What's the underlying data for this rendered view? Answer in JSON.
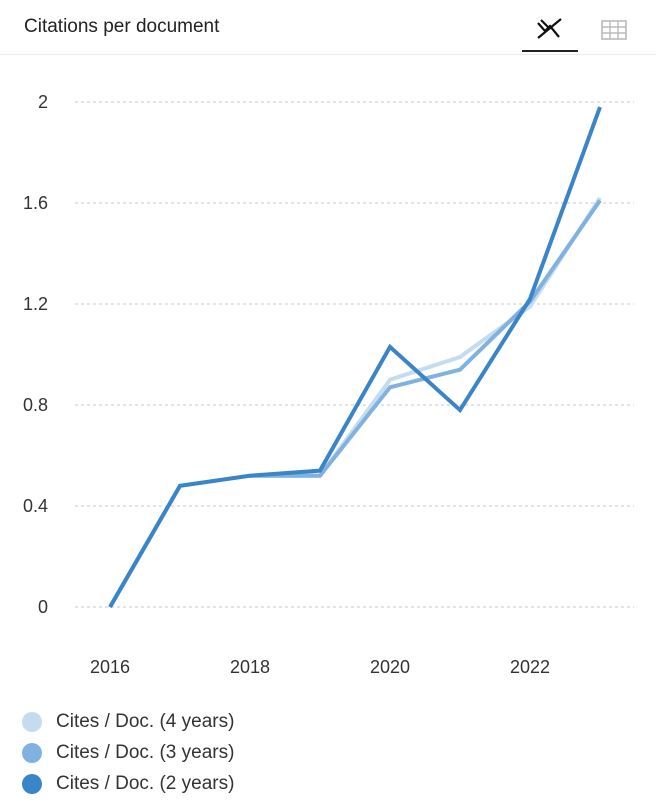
{
  "header": {
    "title": "Citations per document",
    "icons": [
      "line-chart-icon",
      "table-icon"
    ]
  },
  "chart_data": {
    "type": "line",
    "x": [
      2016,
      2017,
      2018,
      2019,
      2020,
      2021,
      2022,
      2023
    ],
    "x_ticks": [
      "2016",
      "2018",
      "2020",
      "2022"
    ],
    "y_ticks": [
      "0",
      "0.4",
      "0.8",
      "1.2",
      "1.6",
      "2"
    ],
    "ylim": [
      0,
      2
    ],
    "grid": "horizontal dashed",
    "legend_position": "bottom",
    "series": [
      {
        "name": "Cites / Doc. (4 years)",
        "color": "#c3dcf0",
        "values": [
          0,
          0.48,
          0.52,
          0.52,
          0.9,
          0.99,
          1.19,
          1.62
        ]
      },
      {
        "name": "Cites / Doc. (3 years)",
        "color": "#7fb2e0",
        "values": [
          0,
          0.48,
          0.52,
          0.52,
          0.87,
          0.94,
          1.21,
          1.61
        ]
      },
      {
        "name": "Cites / Doc. (2 years)",
        "color": "#3a85c8",
        "values": [
          0,
          0.48,
          0.52,
          0.54,
          1.03,
          0.78,
          1.22,
          1.98
        ]
      }
    ]
  }
}
